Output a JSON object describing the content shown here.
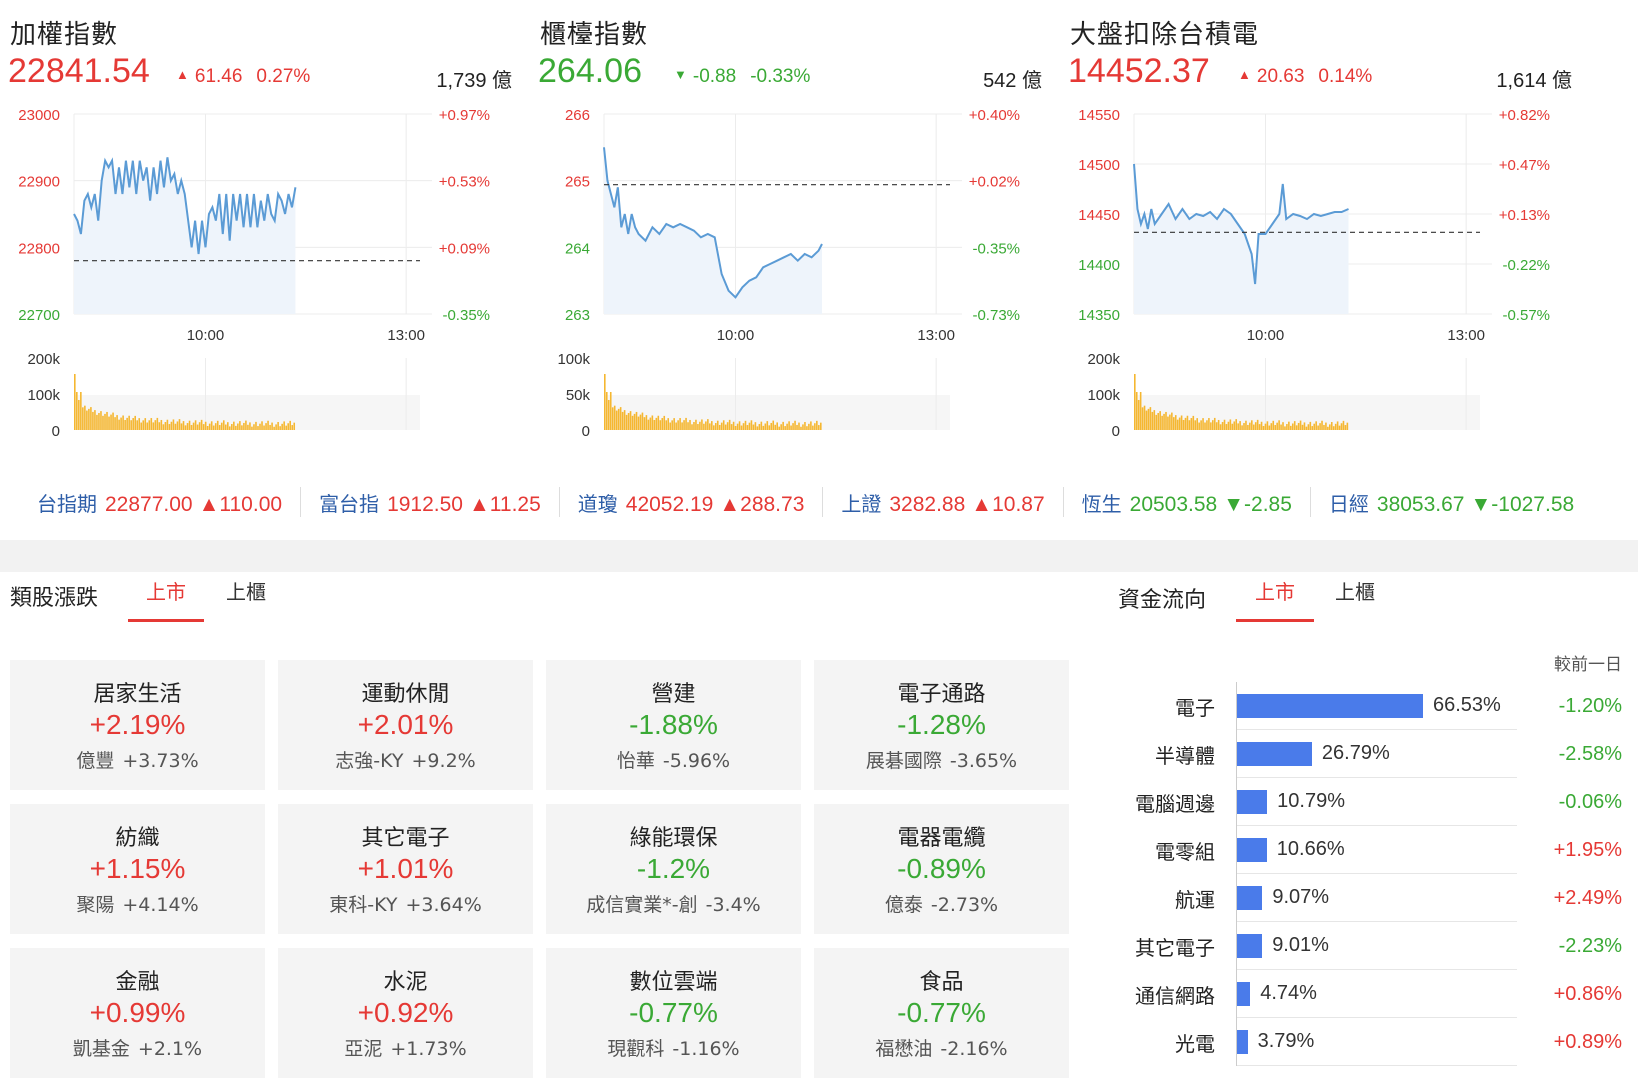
{
  "indices": [
    {
      "name": "加權指數",
      "value": "22841.54",
      "direction": "up",
      "change": "61.46",
      "change_pct": "0.27%",
      "volume": "1,739 億",
      "color": "#e53935",
      "y_ticks": [
        "23000",
        "22900",
        "22800",
        "22700"
      ],
      "y_tick_colors": [
        "#e53935",
        "#e53935",
        "#e53935",
        "#3aa935"
      ],
      "pct_ticks": [
        "+0.97%",
        "+0.53%",
        "+0.09%",
        "-0.35%"
      ],
      "pct_tick_colors": [
        "#e53935",
        "#e53935",
        "#e53935",
        "#3aa935"
      ],
      "x_ticks": [
        "10:00",
        "13:00"
      ],
      "vol_ticks": [
        "200k",
        "100k",
        "0"
      ],
      "ylim": [
        22700,
        23000
      ],
      "prev_close": 22780,
      "series_points": [
        [
          0,
          22850
        ],
        [
          0.01,
          22840
        ],
        [
          0.02,
          22820
        ],
        [
          0.03,
          22870
        ],
        [
          0.04,
          22880
        ],
        [
          0.05,
          22860
        ],
        [
          0.06,
          22880
        ],
        [
          0.07,
          22840
        ],
        [
          0.08,
          22900
        ],
        [
          0.09,
          22930
        ],
        [
          0.1,
          22920
        ],
        [
          0.11,
          22930
        ],
        [
          0.12,
          22880
        ],
        [
          0.13,
          22920
        ],
        [
          0.14,
          22880
        ],
        [
          0.15,
          22930
        ],
        [
          0.16,
          22890
        ],
        [
          0.17,
          22930
        ],
        [
          0.18,
          22880
        ],
        [
          0.19,
          22930
        ],
        [
          0.2,
          22900
        ],
        [
          0.21,
          22920
        ],
        [
          0.22,
          22870
        ],
        [
          0.23,
          22920
        ],
        [
          0.24,
          22880
        ],
        [
          0.25,
          22930
        ],
        [
          0.26,
          22890
        ],
        [
          0.27,
          22935
        ],
        [
          0.28,
          22900
        ],
        [
          0.29,
          22910
        ],
        [
          0.3,
          22880
        ],
        [
          0.31,
          22900
        ],
        [
          0.32,
          22880
        ],
        [
          0.33,
          22840
        ],
        [
          0.34,
          22800
        ],
        [
          0.35,
          22840
        ],
        [
          0.36,
          22790
        ],
        [
          0.37,
          22840
        ],
        [
          0.38,
          22800
        ],
        [
          0.39,
          22850
        ],
        [
          0.4,
          22860
        ],
        [
          0.41,
          22840
        ],
        [
          0.42,
          22880
        ],
        [
          0.43,
          22820
        ],
        [
          0.44,
          22880
        ],
        [
          0.45,
          22810
        ],
        [
          0.46,
          22880
        ],
        [
          0.47,
          22840
        ],
        [
          0.48,
          22880
        ],
        [
          0.49,
          22830
        ],
        [
          0.5,
          22880
        ],
        [
          0.51,
          22830
        ],
        [
          0.52,
          22880
        ],
        [
          0.53,
          22830
        ],
        [
          0.54,
          22870
        ],
        [
          0.55,
          22840
        ],
        [
          0.56,
          22880
        ],
        [
          0.57,
          22850
        ],
        [
          0.58,
          22840
        ],
        [
          0.59,
          22880
        ],
        [
          0.6,
          22870
        ],
        [
          0.61,
          22850
        ],
        [
          0.62,
          22880
        ],
        [
          0.63,
          22860
        ],
        [
          0.64,
          22890
        ]
      ]
    },
    {
      "name": "櫃檯指數",
      "value": "264.06",
      "direction": "down",
      "change": "-0.88",
      "change_pct": "-0.33%",
      "volume": "542 億",
      "color": "#3aa935",
      "y_ticks": [
        "266",
        "265",
        "264",
        "263"
      ],
      "y_tick_colors": [
        "#e53935",
        "#e53935",
        "#3aa935",
        "#3aa935"
      ],
      "pct_ticks": [
        "+0.40%",
        "+0.02%",
        "-0.35%",
        "-0.73%"
      ],
      "pct_tick_colors": [
        "#e53935",
        "#e53935",
        "#3aa935",
        "#3aa935"
      ],
      "x_ticks": [
        "10:00",
        "13:00"
      ],
      "vol_ticks": [
        "100k",
        "50k",
        "0"
      ],
      "ylim": [
        263,
        266
      ],
      "prev_close": 264.94,
      "series_points": [
        [
          0,
          265.5
        ],
        [
          0.01,
          265.0
        ],
        [
          0.02,
          264.8
        ],
        [
          0.03,
          264.6
        ],
        [
          0.04,
          264.9
        ],
        [
          0.05,
          264.3
        ],
        [
          0.06,
          264.5
        ],
        [
          0.07,
          264.2
        ],
        [
          0.08,
          264.5
        ],
        [
          0.09,
          264.3
        ],
        [
          0.1,
          264.2
        ],
        [
          0.12,
          264.1
        ],
        [
          0.14,
          264.3
        ],
        [
          0.16,
          264.2
        ],
        [
          0.18,
          264.35
        ],
        [
          0.2,
          264.3
        ],
        [
          0.22,
          264.35
        ],
        [
          0.24,
          264.3
        ],
        [
          0.26,
          264.25
        ],
        [
          0.28,
          264.15
        ],
        [
          0.3,
          264.2
        ],
        [
          0.32,
          264.15
        ],
        [
          0.34,
          263.6
        ],
        [
          0.36,
          263.35
        ],
        [
          0.38,
          263.25
        ],
        [
          0.4,
          263.4
        ],
        [
          0.42,
          263.5
        ],
        [
          0.44,
          263.55
        ],
        [
          0.46,
          263.7
        ],
        [
          0.48,
          263.75
        ],
        [
          0.5,
          263.8
        ],
        [
          0.52,
          263.85
        ],
        [
          0.54,
          263.9
        ],
        [
          0.56,
          263.8
        ],
        [
          0.58,
          263.9
        ],
        [
          0.6,
          263.85
        ],
        [
          0.62,
          263.95
        ],
        [
          0.63,
          264.05
        ]
      ]
    },
    {
      "name": "大盤扣除台積電",
      "value": "14452.37",
      "direction": "up",
      "change": "20.63",
      "change_pct": "0.14%",
      "volume": "1,614 億",
      "color": "#e53935",
      "y_ticks": [
        "14550",
        "14500",
        "14450",
        "14400",
        "14350"
      ],
      "y_tick_colors": [
        "#e53935",
        "#e53935",
        "#e53935",
        "#3aa935",
        "#3aa935"
      ],
      "pct_ticks": [
        "+0.82%",
        "+0.47%",
        "+0.13%",
        "-0.22%",
        "-0.57%"
      ],
      "pct_tick_colors": [
        "#e53935",
        "#e53935",
        "#e53935",
        "#3aa935",
        "#3aa935"
      ],
      "x_ticks": [
        "10:00",
        "13:00"
      ],
      "vol_ticks": [
        "200k",
        "100k",
        "0"
      ],
      "ylim": [
        14350,
        14550
      ],
      "prev_close": 14431.7,
      "series_points": [
        [
          0,
          14500
        ],
        [
          0.01,
          14455
        ],
        [
          0.02,
          14440
        ],
        [
          0.03,
          14450
        ],
        [
          0.04,
          14435
        ],
        [
          0.05,
          14455
        ],
        [
          0.06,
          14440
        ],
        [
          0.08,
          14450
        ],
        [
          0.1,
          14460
        ],
        [
          0.12,
          14445
        ],
        [
          0.14,
          14455
        ],
        [
          0.16,
          14445
        ],
        [
          0.18,
          14450
        ],
        [
          0.2,
          14448
        ],
        [
          0.22,
          14452
        ],
        [
          0.24,
          14445
        ],
        [
          0.26,
          14455
        ],
        [
          0.28,
          14450
        ],
        [
          0.3,
          14440
        ],
        [
          0.32,
          14430
        ],
        [
          0.34,
          14410
        ],
        [
          0.35,
          14380
        ],
        [
          0.36,
          14430
        ],
        [
          0.38,
          14430
        ],
        [
          0.4,
          14440
        ],
        [
          0.42,
          14450
        ],
        [
          0.43,
          14480
        ],
        [
          0.44,
          14445
        ],
        [
          0.46,
          14450
        ],
        [
          0.48,
          14448
        ],
        [
          0.5,
          14445
        ],
        [
          0.52,
          14450
        ],
        [
          0.54,
          14448
        ],
        [
          0.56,
          14450
        ],
        [
          0.58,
          14452
        ],
        [
          0.6,
          14452
        ],
        [
          0.62,
          14455
        ]
      ]
    }
  ],
  "ticker": [
    {
      "name": "台指期",
      "value": "22877.00",
      "change": "▲110.00",
      "direction": "up"
    },
    {
      "name": "富台指",
      "value": "1912.50",
      "change": "▲11.25",
      "direction": "up"
    },
    {
      "name": "道瓊",
      "value": "42052.19",
      "change": "▲288.73",
      "direction": "up"
    },
    {
      "name": "上證",
      "value": "3282.88",
      "change": "▲10.87",
      "direction": "up"
    },
    {
      "name": "恆生",
      "value": "20503.58",
      "change": "▼-2.85",
      "direction": "down"
    },
    {
      "name": "日經",
      "value": "38053.67",
      "change": "▼-1027.58",
      "direction": "down"
    }
  ],
  "sectors": {
    "title": "類股漲跌",
    "tabs": [
      "上市",
      "上櫃"
    ],
    "items": [
      {
        "name": "居家生活",
        "pct": "+2.19%",
        "dir": "up",
        "stock": "億豐",
        "stock_pct": "+3.73%"
      },
      {
        "name": "運動休閒",
        "pct": "+2.01%",
        "dir": "up",
        "stock": "志強-KY",
        "stock_pct": "+9.2%"
      },
      {
        "name": "營建",
        "pct": "-1.88%",
        "dir": "down",
        "stock": "怡華",
        "stock_pct": "-5.96%"
      },
      {
        "name": "電子通路",
        "pct": "-1.28%",
        "dir": "down",
        "stock": "展碁國際",
        "stock_pct": "-3.65%"
      },
      {
        "name": "紡織",
        "pct": "+1.15%",
        "dir": "up",
        "stock": "聚陽",
        "stock_pct": "+4.14%"
      },
      {
        "name": "其它電子",
        "pct": "+1.01%",
        "dir": "up",
        "stock": "東科-KY",
        "stock_pct": "+3.64%"
      },
      {
        "name": "綠能環保",
        "pct": "-1.2%",
        "dir": "down",
        "stock": "成信實業*-創",
        "stock_pct": "-3.4%"
      },
      {
        "name": "電器電纜",
        "pct": "-0.89%",
        "dir": "down",
        "stock": "億泰",
        "stock_pct": "-2.73%"
      },
      {
        "name": "金融",
        "pct": "+0.99%",
        "dir": "up",
        "stock": "凱基金",
        "stock_pct": "+2.1%"
      },
      {
        "name": "水泥",
        "pct": "+0.92%",
        "dir": "up",
        "stock": "亞泥",
        "stock_pct": "+1.73%"
      },
      {
        "name": "數位雲端",
        "pct": "-0.77%",
        "dir": "down",
        "stock": "現觀科",
        "stock_pct": "-1.16%"
      },
      {
        "name": "食品",
        "pct": "-0.77%",
        "dir": "down",
        "stock": "福懋油",
        "stock_pct": "-2.16%"
      }
    ]
  },
  "fund_flow": {
    "title": "資金流向",
    "tabs": [
      "上市",
      "上櫃"
    ],
    "compare_label": "較前一日",
    "bar_color": "#4a7bea",
    "items": [
      {
        "name": "電子",
        "share": 66.53,
        "share_label": "66.53%",
        "change": "-1.20%",
        "dir": "down"
      },
      {
        "name": "半導體",
        "share": 26.79,
        "share_label": "26.79%",
        "change": "-2.58%",
        "dir": "down"
      },
      {
        "name": "電腦週邊",
        "share": 10.79,
        "share_label": "10.79%",
        "change": "-0.06%",
        "dir": "down"
      },
      {
        "name": "電零組",
        "share": 10.66,
        "share_label": "10.66%",
        "change": "+1.95%",
        "dir": "up"
      },
      {
        "name": "航運",
        "share": 9.07,
        "share_label": "9.07%",
        "change": "+2.49%",
        "dir": "up"
      },
      {
        "name": "其它電子",
        "share": 9.01,
        "share_label": "9.01%",
        "change": "-2.23%",
        "dir": "down"
      },
      {
        "name": "通信網路",
        "share": 4.74,
        "share_label": "4.74%",
        "change": "+0.86%",
        "dir": "up"
      },
      {
        "name": "光電",
        "share": 3.79,
        "share_label": "3.79%",
        "change": "+0.89%",
        "dir": "up"
      }
    ]
  },
  "colors": {
    "up": "#e53935",
    "down": "#3aa935",
    "line": "#5b9bd5",
    "fill": "#eef4fb",
    "volume": "#f5b731",
    "link": "#2e5ea8"
  }
}
